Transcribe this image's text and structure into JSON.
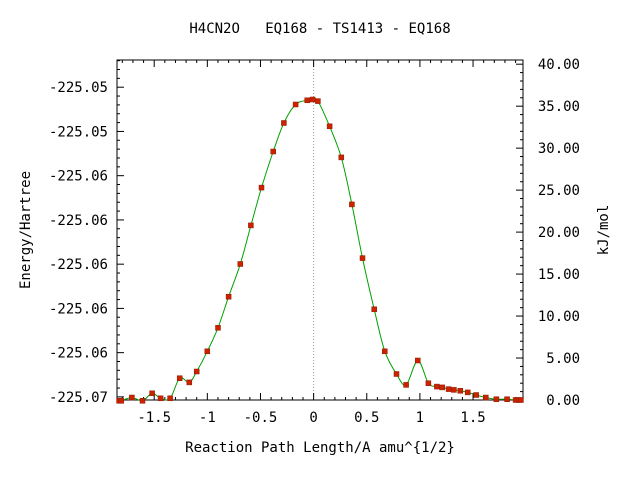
{
  "chart_data": {
    "type": "line",
    "title": "H4CN2O   EQ168 - TS1413 - EQ168",
    "xlabel": "Reaction Path Length/A amu^{1/2}",
    "ylabel_left": "Energy/Hartree",
    "ylabel_right": "kJ/mol",
    "xlim": [
      -1.85,
      1.97
    ],
    "ylim_kj": [
      0,
      40.5
    ],
    "x_ticks": [
      -1.5,
      -1,
      -0.5,
      0,
      0.5,
      1,
      1.5
    ],
    "x_tick_labels": [
      "-1.5",
      "-1",
      "-0.5",
      "0",
      "0.5",
      "1",
      "1.5"
    ],
    "left_ticks_kj": [
      0.37,
      5.64,
      10.91,
      16.18,
      21.45,
      26.72,
      31.99,
      37.26
    ],
    "left_tick_labels": [
      "-225.07",
      "-225.06",
      "-225.06",
      "-225.06",
      "-225.06",
      "-225.06",
      "-225.05",
      "-225.05"
    ],
    "right_ticks": [
      0,
      5,
      10,
      15,
      20,
      25,
      30,
      35,
      40
    ],
    "right_tick_labels": [
      "0.00",
      "5.00",
      "10.00",
      "15.00",
      "20.00",
      "25.00",
      "30.00",
      "35.00",
      "40.00"
    ],
    "reference_line_x": 0,
    "colors": {
      "line": "#00a000",
      "marker": "#cc2200",
      "reference_line": "#999999"
    },
    "series": [
      {
        "x": [
          -1.83,
          -1.81,
          -1.71,
          -1.61,
          -1.52,
          -1.44,
          -1.35,
          -1.26,
          -1.17,
          -1.1,
          -1.0,
          -0.9,
          -0.8,
          -0.69,
          -0.59,
          -0.49,
          -0.38,
          -0.28,
          -0.17,
          -0.06,
          -0.01,
          0.04,
          0.15,
          0.26,
          0.36,
          0.46,
          0.57,
          0.67,
          0.78,
          0.87,
          0.98,
          1.08,
          1.16,
          1.21,
          1.27,
          1.32,
          1.38,
          1.45,
          1.53,
          1.62,
          1.72,
          1.82,
          1.9,
          1.93,
          1.95
        ],
        "y": [
          -0.1,
          -0.1,
          0.3,
          -0.1,
          0.8,
          0.2,
          0.2,
          2.6,
          2.1,
          3.4,
          5.8,
          8.6,
          12.3,
          16.2,
          20.8,
          25.3,
          29.6,
          33.0,
          35.2,
          35.7,
          35.8,
          35.6,
          32.6,
          28.9,
          23.3,
          16.9,
          10.8,
          5.8,
          3.1,
          1.8,
          4.7,
          2.0,
          1.6,
          1.5,
          1.3,
          1.2,
          1.1,
          0.9,
          0.6,
          0.3,
          0.1,
          0.1,
          0.0,
          0.0,
          0.0
        ]
      }
    ]
  }
}
